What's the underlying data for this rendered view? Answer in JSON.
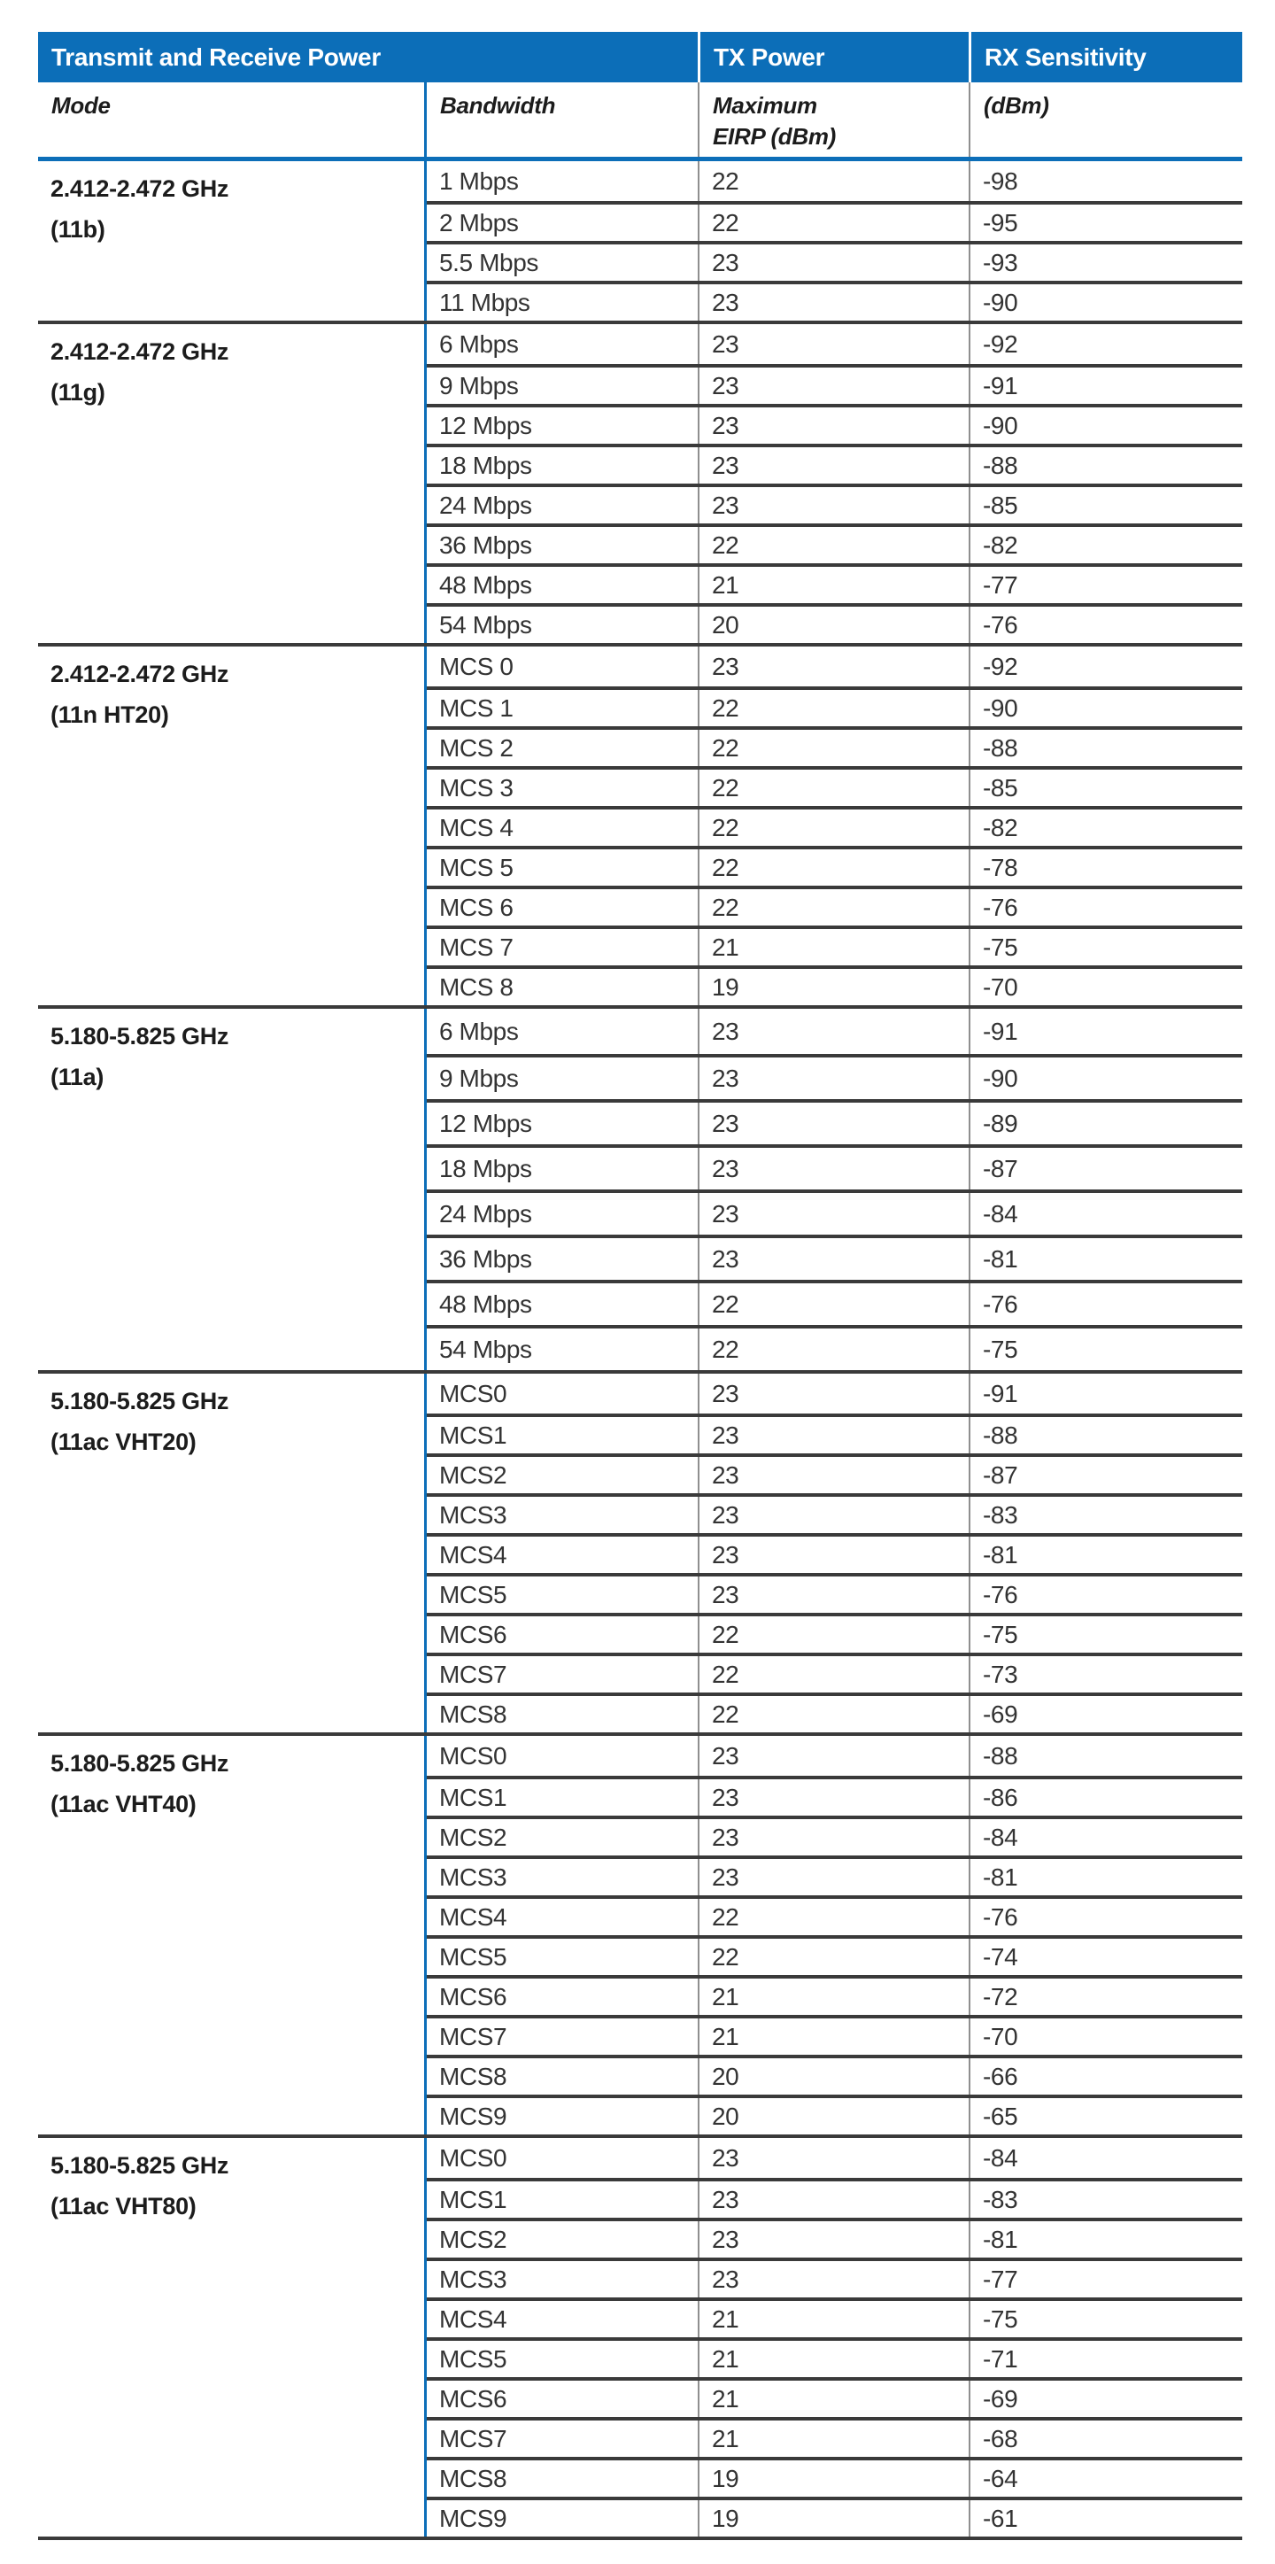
{
  "colors": {
    "accent_blue": "#0C6EB8",
    "row_divider_dark": "#3A3A3A",
    "column_divider_gray": "#8F8F8F"
  },
  "header": {
    "title": "Transmit and Receive Power",
    "tx": "TX Power",
    "rx": "RX Sensitivity"
  },
  "subheader": {
    "mode": "Mode",
    "bandwidth": "Bandwidth",
    "tx_line1": "Maximum",
    "tx_line2": "EIRP (dBm)",
    "rx": "(dBm)"
  },
  "columns": [
    "Mode",
    "Bandwidth",
    "TX Power Maximum EIRP (dBm)",
    "RX Sensitivity (dBm)"
  ],
  "groups": [
    {
      "mode_freq": "2.412-2.472 GHz",
      "mode_std": "(11b)",
      "rows": [
        [
          "1 Mbps",
          "22",
          "-98"
        ],
        [
          "2 Mbps",
          "22",
          "-95"
        ],
        [
          "5.5 Mbps",
          "23",
          "-93"
        ],
        [
          "11 Mbps",
          "23",
          "-90"
        ]
      ]
    },
    {
      "mode_freq": "2.412-2.472 GHz",
      "mode_std": "(11g)",
      "rows": [
        [
          "6 Mbps",
          "23",
          "-92"
        ],
        [
          "9 Mbps",
          "23",
          "-91"
        ],
        [
          "12 Mbps",
          "23",
          "-90"
        ],
        [
          "18 Mbps",
          "23",
          "-88"
        ],
        [
          "24 Mbps",
          "23",
          "-85"
        ],
        [
          "36 Mbps",
          "22",
          "-82"
        ],
        [
          "48 Mbps",
          "21",
          "-77"
        ],
        [
          "54 Mbps",
          "20",
          "-76"
        ]
      ]
    },
    {
      "mode_freq": "2.412-2.472 GHz",
      "mode_std": "(11n HT20)",
      "rows": [
        [
          "MCS 0",
          "23",
          "-92"
        ],
        [
          "MCS 1",
          "22",
          "-90"
        ],
        [
          "MCS 2",
          "22",
          "-88"
        ],
        [
          "MCS 3",
          "22",
          "-85"
        ],
        [
          "MCS 4",
          "22",
          "-82"
        ],
        [
          "MCS 5",
          "22",
          "-78"
        ],
        [
          "MCS 6",
          "22",
          "-76"
        ],
        [
          "MCS 7",
          "21",
          "-75"
        ],
        [
          "MCS 8",
          "19",
          "-70"
        ]
      ]
    },
    {
      "mode_freq": "5.180-5.825 GHz",
      "mode_std": "(11a)",
      "rows": [
        [
          "6 Mbps",
          "23",
          "-91"
        ],
        [
          "9 Mbps",
          "23",
          "-90"
        ],
        [
          "12 Mbps",
          "23",
          "-89"
        ],
        [
          "18 Mbps",
          "23",
          "-87"
        ],
        [
          "24 Mbps",
          "23",
          "-84"
        ],
        [
          "36 Mbps",
          "23",
          "-81"
        ],
        [
          "48 Mbps",
          "22",
          "-76"
        ],
        [
          "54 Mbps",
          "22",
          "-75"
        ]
      ]
    },
    {
      "mode_freq": "5.180-5.825 GHz",
      "mode_std": "(11ac VHT20)",
      "rows": [
        [
          "MCS0",
          "23",
          "-91"
        ],
        [
          "MCS1",
          "23",
          "-88"
        ],
        [
          "MCS2",
          "23",
          "-87"
        ],
        [
          "MCS3",
          "23",
          "-83"
        ],
        [
          "MCS4",
          "23",
          "-81"
        ],
        [
          "MCS5",
          "23",
          "-76"
        ],
        [
          "MCS6",
          "22",
          "-75"
        ],
        [
          "MCS7",
          "22",
          "-73"
        ],
        [
          "MCS8",
          "22",
          "-69"
        ]
      ]
    },
    {
      "mode_freq": "5.180-5.825 GHz",
      "mode_std": "(11ac VHT40)",
      "rows": [
        [
          "MCS0",
          "23",
          "-88"
        ],
        [
          "MCS1",
          "23",
          "-86"
        ],
        [
          "MCS2",
          "23",
          "-84"
        ],
        [
          "MCS3",
          "23",
          "-81"
        ],
        [
          "MCS4",
          "22",
          "-76"
        ],
        [
          "MCS5",
          "22",
          "-74"
        ],
        [
          "MCS6",
          "21",
          "-72"
        ],
        [
          "MCS7",
          "21",
          "-70"
        ],
        [
          "MCS8",
          "20",
          "-66"
        ],
        [
          "MCS9",
          "20",
          "-65"
        ]
      ]
    },
    {
      "mode_freq": "5.180-5.825 GHz",
      "mode_std": "(11ac VHT80)",
      "rows": [
        [
          "MCS0",
          "23",
          "-84"
        ],
        [
          "MCS1",
          "23",
          "-83"
        ],
        [
          "MCS2",
          "23",
          "-81"
        ],
        [
          "MCS3",
          "23",
          "-77"
        ],
        [
          "MCS4",
          "21",
          "-75"
        ],
        [
          "MCS5",
          "21",
          "-71"
        ],
        [
          "MCS6",
          "21",
          "-69"
        ],
        [
          "MCS7",
          "21",
          "-68"
        ],
        [
          "MCS8",
          "19",
          "-64"
        ],
        [
          "MCS9",
          "19",
          "-61"
        ]
      ]
    }
  ]
}
